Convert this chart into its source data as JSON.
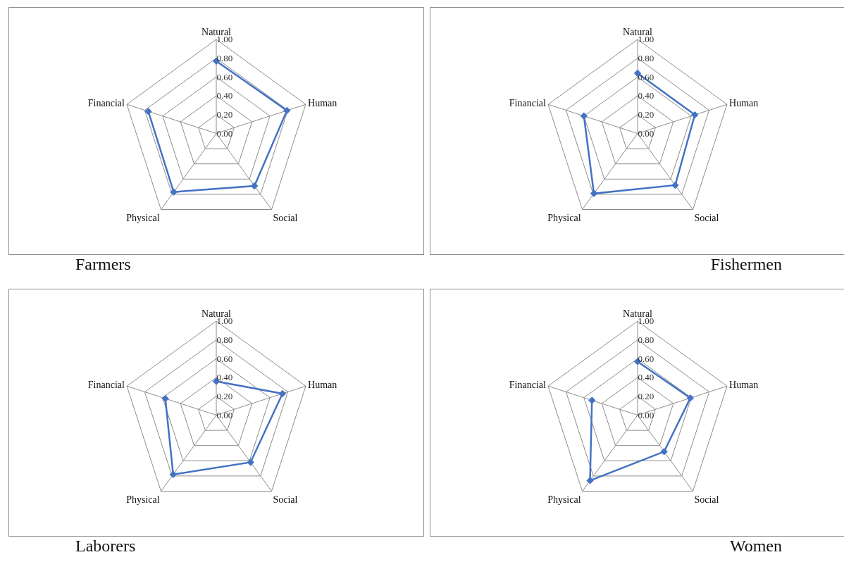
{
  "chart_data": [
    {
      "type": "radar",
      "title": "Farmers",
      "categories": [
        "Natural",
        "Human",
        "Social",
        "Physical",
        "Financial"
      ],
      "series": [
        {
          "color": "#4472c4",
          "values": [
            0.77,
            0.79,
            0.69,
            0.77,
            0.76
          ]
        }
      ],
      "ylim": [
        0,
        1
      ],
      "yticks": [
        {
          "value": 0,
          "label": "0.00"
        },
        {
          "value": 0.2,
          "label": "0.20"
        },
        {
          "value": 0.4,
          "label": "0.40"
        },
        {
          "value": 0.6,
          "label": "0.60"
        },
        {
          "value": 0.8,
          "label": "0.80"
        },
        {
          "value": 1,
          "label": "1.00"
        }
      ],
      "grid": true,
      "marker": "diamond"
    },
    {
      "type": "radar",
      "title": "Fishermen",
      "categories": [
        "Natural",
        "Human",
        "Social",
        "Physical",
        "Financial"
      ],
      "series": [
        {
          "color": "#4472c4",
          "values": [
            0.64,
            0.64,
            0.68,
            0.79,
            0.6
          ]
        }
      ],
      "ylim": [
        0,
        1
      ],
      "yticks": [
        {
          "value": 0,
          "label": "0.00"
        },
        {
          "value": 0.2,
          "label": "0.20"
        },
        {
          "value": 0.4,
          "label": "0.40"
        },
        {
          "value": 0.6,
          "label": "0.60"
        },
        {
          "value": 0.8,
          "label": "0.80"
        },
        {
          "value": 1,
          "label": "1.00"
        }
      ],
      "grid": true,
      "marker": "diamond"
    },
    {
      "type": "radar",
      "title": "Laborers",
      "categories": [
        "Natural",
        "Human",
        "Social",
        "Physical",
        "Financial"
      ],
      "series": [
        {
          "color": "#4472c4",
          "values": [
            0.36,
            0.74,
            0.62,
            0.78,
            0.57
          ]
        }
      ],
      "ylim": [
        0,
        1
      ],
      "yticks": [
        {
          "value": 0,
          "label": "0.00"
        },
        {
          "value": 0.2,
          "label": "0.20"
        },
        {
          "value": 0.4,
          "label": "0.40"
        },
        {
          "value": 0.6,
          "label": "0.60"
        },
        {
          "value": 0.8,
          "label": "0.80"
        },
        {
          "value": 1,
          "label": "1.00"
        }
      ],
      "grid": true,
      "marker": "diamond"
    },
    {
      "type": "radar",
      "title": "Women",
      "categories": [
        "Natural",
        "Human",
        "Social",
        "Physical",
        "Financial"
      ],
      "series": [
        {
          "color": "#4472c4",
          "values": [
            0.57,
            0.59,
            0.48,
            0.86,
            0.51
          ]
        }
      ],
      "ylim": [
        0,
        1
      ],
      "yticks": [
        {
          "value": 0,
          "label": "0.00"
        },
        {
          "value": 0.2,
          "label": "0.20"
        },
        {
          "value": 0.4,
          "label": "0.40"
        },
        {
          "value": 0.6,
          "label": "0.60"
        },
        {
          "value": 0.8,
          "label": "0.80"
        },
        {
          "value": 1,
          "label": "1.00"
        }
      ],
      "grid": true,
      "marker": "diamond"
    }
  ]
}
